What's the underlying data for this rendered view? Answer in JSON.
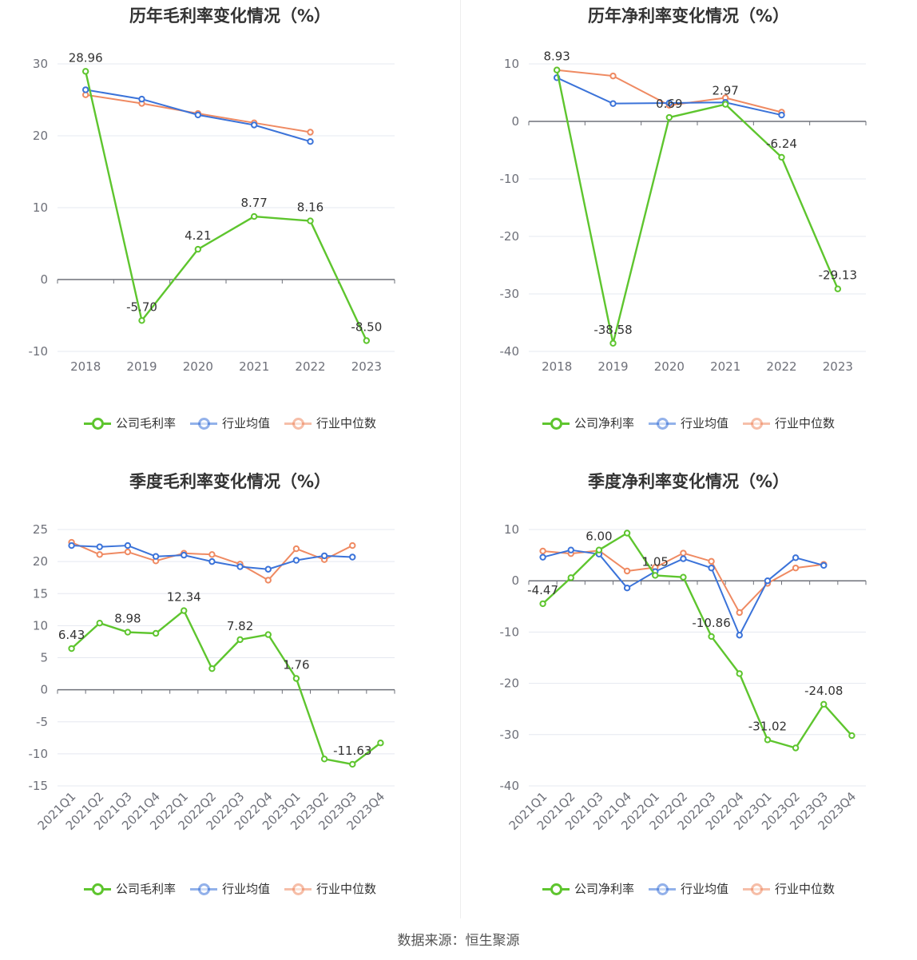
{
  "colors": {
    "company": "#5ec52e",
    "avg": "#3b73d9",
    "median": "#ef8a62",
    "grid": "#e5e8f0",
    "axis": "#6e7079",
    "tick_text": "#6e7079"
  },
  "source": "数据来源：恒生聚源",
  "chart_data": [
    {
      "type": "line",
      "title": "历年毛利率变化情况（%）",
      "categories": [
        "2018",
        "2019",
        "2020",
        "2021",
        "2022",
        "2023"
      ],
      "ylim": [
        -10,
        30
      ],
      "yticks": [
        -10,
        0,
        10,
        20,
        30
      ],
      "rotate_x": false,
      "legend": [
        "公司毛利率",
        "行业均值",
        "行业中位数"
      ],
      "labels": [
        true,
        true,
        true,
        true,
        true,
        true
      ],
      "series": [
        {
          "name": "公司毛利率",
          "values": [
            28.96,
            -5.7,
            4.21,
            8.77,
            8.16,
            -8.5
          ]
        },
        {
          "name": "行业均值",
          "values": [
            26.4,
            25.1,
            22.9,
            21.5,
            19.2,
            null
          ]
        },
        {
          "name": "行业中位数",
          "values": [
            25.7,
            24.5,
            23.1,
            21.8,
            20.5,
            null
          ]
        }
      ],
      "label_texts": [
        "28.96",
        "-5.70",
        "4.21",
        "8.77",
        "8.16",
        "-8.50"
      ]
    },
    {
      "type": "line",
      "title": "历年净利率变化情况（%）",
      "categories": [
        "2018",
        "2019",
        "2020",
        "2021",
        "2022",
        "2023"
      ],
      "ylim": [
        -40,
        10
      ],
      "yticks": [
        -40,
        -30,
        -20,
        -10,
        0,
        10
      ],
      "rotate_x": false,
      "legend": [
        "公司净利率",
        "行业均值",
        "行业中位数"
      ],
      "labels": [
        true,
        true,
        true,
        true,
        true,
        true
      ],
      "series": [
        {
          "name": "公司净利率",
          "values": [
            8.93,
            -38.58,
            0.69,
            2.97,
            -6.24,
            -29.13
          ]
        },
        {
          "name": "行业均值",
          "values": [
            7.6,
            3.1,
            3.2,
            3.3,
            1.1,
            null
          ]
        },
        {
          "name": "行业中位数",
          "values": [
            8.93,
            7.9,
            2.8,
            4.1,
            1.6,
            null
          ]
        }
      ],
      "label_texts": [
        "8.93",
        "-38.58",
        "0.69",
        "2.97",
        "-6.24",
        "-29.13"
      ]
    },
    {
      "type": "line",
      "title": "季度毛利率变化情况（%）",
      "categories": [
        "2021Q1",
        "2021Q2",
        "2021Q3",
        "2021Q4",
        "2022Q1",
        "2022Q2",
        "2022Q3",
        "2022Q4",
        "2023Q1",
        "2023Q2",
        "2023Q3",
        "2023Q4"
      ],
      "ylim": [
        -15,
        25
      ],
      "yticks": [
        -15,
        -10,
        -5,
        0,
        5,
        10,
        15,
        20,
        25
      ],
      "rotate_x": true,
      "legend": [
        "公司毛利率",
        "行业均值",
        "行业中位数"
      ],
      "labels": [
        true,
        false,
        true,
        false,
        true,
        false,
        true,
        false,
        true,
        false,
        true,
        false
      ],
      "series": [
        {
          "name": "公司毛利率",
          "values": [
            6.43,
            10.4,
            8.98,
            8.8,
            12.34,
            3.3,
            7.82,
            8.6,
            1.76,
            -10.8,
            -11.63,
            -8.3
          ]
        },
        {
          "name": "行业均值",
          "values": [
            22.5,
            22.3,
            22.5,
            20.8,
            21.0,
            20.0,
            19.2,
            18.8,
            20.2,
            20.9,
            20.7,
            null
          ]
        },
        {
          "name": "行业中位数",
          "values": [
            23.0,
            21.1,
            21.5,
            20.1,
            21.3,
            21.1,
            19.6,
            17.1,
            22.0,
            20.3,
            22.5,
            null
          ]
        }
      ],
      "label_texts": [
        "6.43",
        "",
        "8.98",
        "",
        "12.34",
        "",
        "7.82",
        "",
        "1.76",
        "",
        "-11.63",
        ""
      ]
    },
    {
      "type": "line",
      "title": "季度净利率变化情况（%）",
      "categories": [
        "2021Q1",
        "2021Q2",
        "2021Q3",
        "2021Q4",
        "2022Q1",
        "2022Q2",
        "2022Q3",
        "2022Q4",
        "2023Q1",
        "2023Q2",
        "2023Q3",
        "2023Q4"
      ],
      "ylim": [
        -40,
        10
      ],
      "yticks": [
        -40,
        -30,
        -20,
        -10,
        0,
        10
      ],
      "rotate_x": true,
      "legend": [
        "公司净利率",
        "行业均值",
        "行业中位数"
      ],
      "labels": [
        true,
        false,
        true,
        false,
        true,
        false,
        true,
        false,
        true,
        false,
        true,
        false
      ],
      "series": [
        {
          "name": "公司净利率",
          "values": [
            -4.47,
            0.6,
            6.0,
            9.3,
            1.05,
            0.7,
            -10.86,
            -18.1,
            -31.02,
            -32.6,
            -24.08,
            -30.2
          ]
        },
        {
          "name": "行业均值",
          "values": [
            4.6,
            6.0,
            5.2,
            -1.4,
            1.8,
            4.3,
            2.5,
            -10.6,
            0.0,
            4.5,
            3.0,
            null
          ]
        },
        {
          "name": "行业中位数",
          "values": [
            5.8,
            5.3,
            5.9,
            1.9,
            2.6,
            5.4,
            3.8,
            -6.2,
            -0.5,
            2.5,
            3.2,
            null
          ]
        }
      ],
      "label_texts": [
        "-4.47",
        "",
        "6.00",
        "",
        "1.05",
        "",
        "-10.86",
        "",
        "-31.02",
        "",
        "-24.08",
        ""
      ]
    }
  ]
}
